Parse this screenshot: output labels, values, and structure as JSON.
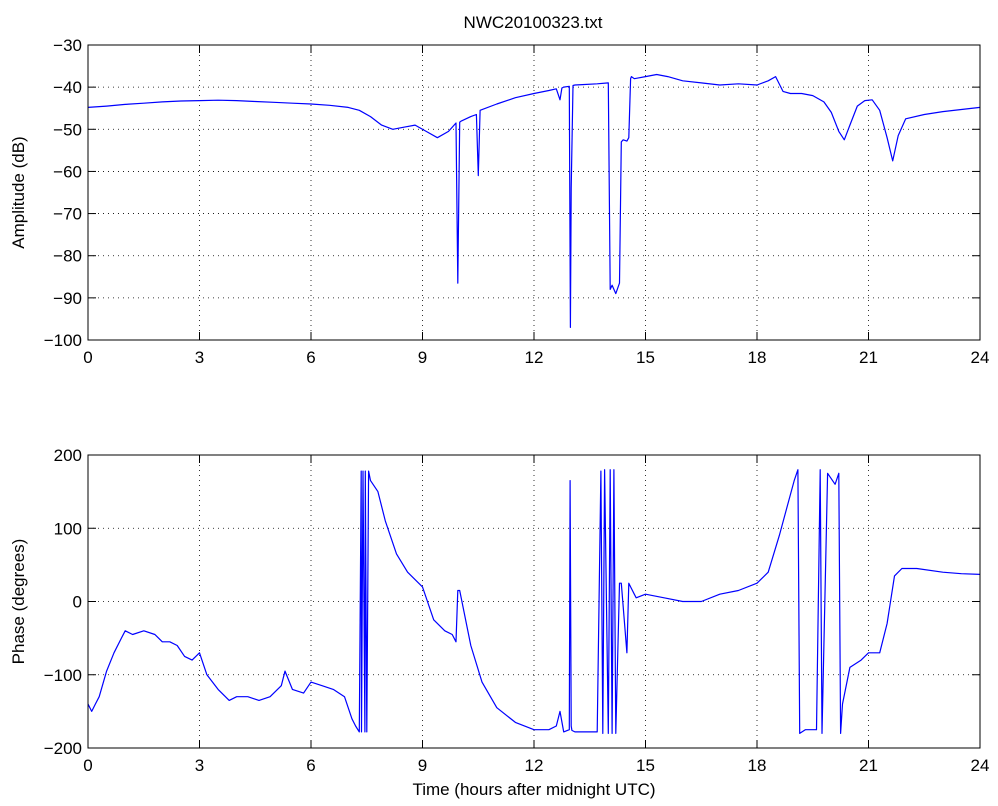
{
  "figure_title": "NWC20100323.txt",
  "line_color": "#0000ff",
  "chart_data": [
    {
      "type": "line",
      "xlabel": "",
      "ylabel": "Amplitude (dB)",
      "xlim": [
        0,
        24
      ],
      "ylim": [
        -100,
        -30
      ],
      "xticks": [
        0,
        3,
        6,
        9,
        12,
        15,
        18,
        21,
        24
      ],
      "yticks": [
        -100,
        -90,
        -80,
        -70,
        -60,
        -50,
        -40,
        -30
      ],
      "grid": true,
      "series": [
        {
          "x": [
            0,
            0.5,
            1,
            1.5,
            2,
            2.5,
            3,
            3.5,
            4,
            4.5,
            5,
            5.5,
            6,
            6.5,
            7,
            7.3,
            7.6,
            7.9,
            8.2,
            8.5,
            8.8,
            9.1,
            9.4,
            9.7,
            9.9,
            9.95,
            10.0,
            10.05,
            10.3,
            10.45,
            10.5,
            10.55,
            11,
            11.5,
            12,
            12.4,
            12.6,
            12.7,
            12.75,
            12.8,
            12.95,
            12.98,
            13.0,
            13.05,
            13.1,
            13.3,
            13.7,
            14.0,
            14.05,
            14.1,
            14.2,
            14.3,
            14.35,
            14.4,
            14.5,
            14.55,
            14.6,
            14.62,
            14.7,
            15.0,
            15.3,
            15.6,
            16.0,
            16.5,
            17.0,
            17.5,
            18.0,
            18.3,
            18.5,
            18.7,
            18.9,
            19.2,
            19.5,
            19.8,
            20.0,
            20.2,
            20.35,
            20.5,
            20.7,
            20.9,
            21.1,
            21.3,
            21.5,
            21.65,
            21.8,
            22.0,
            22.5,
            23.0,
            23.5,
            24.0
          ],
          "values": [
            -44.8,
            -44.5,
            -44.1,
            -43.8,
            -43.5,
            -43.3,
            -43.2,
            -43.1,
            -43.2,
            -43.4,
            -43.6,
            -43.8,
            -44.0,
            -44.3,
            -44.8,
            -45.5,
            -47.0,
            -49.0,
            -50.0,
            -49.5,
            -49.0,
            -50.5,
            -52.0,
            -50.5,
            -48.5,
            -86.5,
            -48.3,
            -48.0,
            -47.0,
            -46.5,
            -61.0,
            -45.5,
            -44.0,
            -42.5,
            -41.5,
            -40.8,
            -40.4,
            -43.0,
            -40.2,
            -40.0,
            -39.8,
            -97.0,
            -64.0,
            -39.6,
            -39.5,
            -39.4,
            -39.2,
            -39.0,
            -88.0,
            -87.0,
            -89.0,
            -86.5,
            -53.0,
            -52.5,
            -52.8,
            -52.0,
            -38.0,
            -37.5,
            -38.0,
            -37.5,
            -37.0,
            -37.5,
            -38.5,
            -39.0,
            -39.5,
            -39.2,
            -39.5,
            -38.5,
            -37.5,
            -41.0,
            -41.5,
            -41.5,
            -42.0,
            -43.5,
            -46.0,
            -50.5,
            -52.5,
            -49.0,
            -44.5,
            -43.2,
            -43.0,
            -45.5,
            -52.0,
            -57.5,
            -51.5,
            -47.5,
            -46.5,
            -45.8,
            -45.3,
            -44.8
          ]
        }
      ]
    },
    {
      "type": "line",
      "xlabel": "Time (hours after midnight UTC)",
      "ylabel": "Phase (degrees)",
      "xlim": [
        0,
        24
      ],
      "ylim": [
        -200,
        200
      ],
      "xticks": [
        0,
        3,
        6,
        9,
        12,
        15,
        18,
        21,
        24
      ],
      "yticks": [
        -200,
        -100,
        0,
        100,
        200
      ],
      "grid": true,
      "series": [
        {
          "x": [
            0,
            0.1,
            0.2,
            0.3,
            0.5,
            0.7,
            0.9,
            1.0,
            1.2,
            1.5,
            1.8,
            2.0,
            2.2,
            2.4,
            2.6,
            2.8,
            3.0,
            3.2,
            3.5,
            3.8,
            4.0,
            4.3,
            4.6,
            4.9,
            5.2,
            5.3,
            5.5,
            5.8,
            6.0,
            6.3,
            6.6,
            6.9,
            7.1,
            7.2,
            7.3,
            7.35,
            7.36,
            7.4,
            7.45,
            7.46,
            7.5,
            7.55,
            7.6,
            7.8,
            8.0,
            8.3,
            8.6,
            9.0,
            9.3,
            9.6,
            9.8,
            9.9,
            9.95,
            10.0,
            10.3,
            10.6,
            11.0,
            11.5,
            12.0,
            12.4,
            12.6,
            12.7,
            12.8,
            12.95,
            12.97,
            13.0,
            13.02,
            13.1,
            13.5,
            13.7,
            13.8,
            13.85,
            13.9,
            14.0,
            14.05,
            14.1,
            14.15,
            14.2,
            14.3,
            14.35,
            14.5,
            14.55,
            14.6,
            14.7,
            14.75,
            15.0,
            15.5,
            16.0,
            16.5,
            17.0,
            17.5,
            18.0,
            18.3,
            18.6,
            19.0,
            19.1,
            19.15,
            19.3,
            19.6,
            19.7,
            19.75,
            19.9,
            20.1,
            20.2,
            20.25,
            20.3,
            20.5,
            20.8,
            21.0,
            21.3,
            21.5,
            21.7,
            21.9,
            22.3,
            23.0,
            23.5,
            24.0
          ],
          "values": [
            -140,
            -150,
            -140,
            -130,
            -95,
            -70,
            -50,
            -40,
            -45,
            -40,
            -45,
            -55,
            -55,
            -60,
            -75,
            -80,
            -70,
            -100,
            -120,
            -135,
            -130,
            -130,
            -135,
            -130,
            -115,
            -95,
            -120,
            -125,
            -110,
            -115,
            -120,
            -130,
            -160,
            -170,
            -178,
            178,
            -178,
            178,
            -178,
            178,
            -178,
            178,
            165,
            150,
            110,
            65,
            40,
            20,
            -25,
            -40,
            -45,
            -55,
            15,
            15,
            -60,
            -110,
            -145,
            -165,
            -175,
            -175,
            -170,
            -150,
            -178,
            -175,
            165,
            -170,
            -176,
            -178,
            -178,
            -178,
            178,
            -180,
            180,
            -180,
            180,
            -180,
            180,
            -180,
            25,
            25,
            -70,
            25,
            20,
            10,
            5,
            10,
            5,
            0,
            0,
            10,
            15,
            25,
            40,
            90,
            165,
            180,
            -180,
            -175,
            -175,
            180,
            -180,
            175,
            160,
            175,
            -180,
            -140,
            -90,
            -80,
            -70,
            -70,
            -30,
            35,
            45,
            45,
            40,
            38,
            37
          ]
        }
      ]
    }
  ]
}
